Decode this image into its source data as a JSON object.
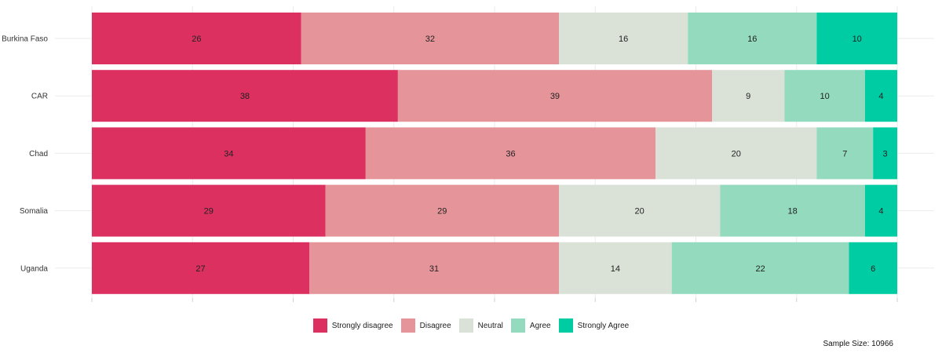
{
  "chart_data": {
    "type": "bar",
    "orientation": "horizontal",
    "stacked": true,
    "categories": [
      "Burkina Faso",
      "CAR",
      "Chad",
      "Somalia",
      "Uganda"
    ],
    "series": [
      {
        "name": "Strongly disagree",
        "color": "#dc3060",
        "values": [
          26,
          38,
          34,
          29,
          27
        ]
      },
      {
        "name": "Disagree",
        "color": "#e5959a",
        "values": [
          32,
          39,
          36,
          29,
          31
        ]
      },
      {
        "name": "Neutral",
        "color": "#dae2d8",
        "values": [
          16,
          9,
          20,
          20,
          14
        ]
      },
      {
        "name": "Agree",
        "color": "#93dabf",
        "values": [
          16,
          10,
          7,
          18,
          22
        ]
      },
      {
        "name": "Strongly Agree",
        "color": "#00cca4",
        "values": [
          10,
          4,
          3,
          4,
          6
        ]
      }
    ],
    "xlim": [
      0,
      100
    ],
    "grid": true,
    "legend_position": "bottom"
  },
  "caption": "Sample Size:  10966"
}
